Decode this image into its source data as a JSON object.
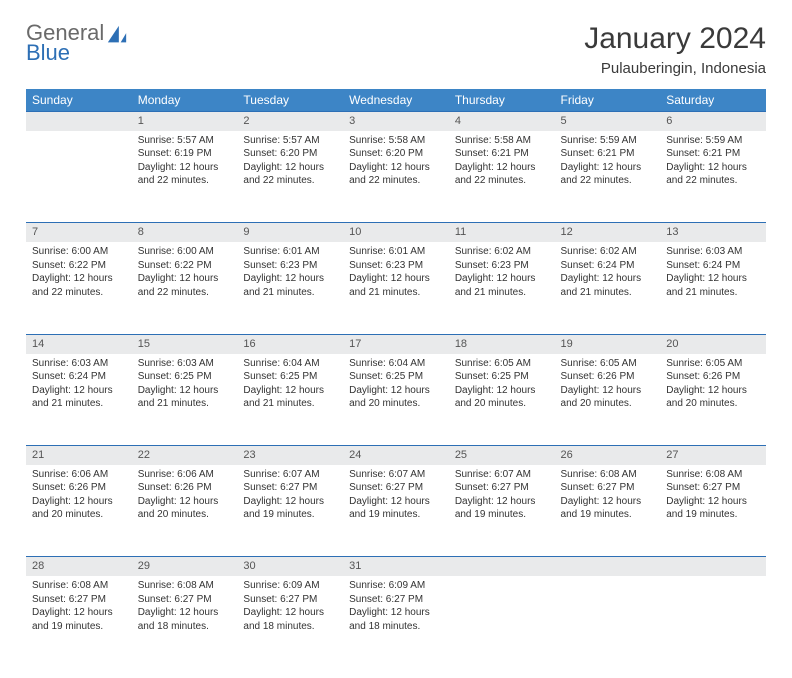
{
  "logo": {
    "general": "General",
    "blue": "Blue"
  },
  "title": "January 2024",
  "location": "Pulauberingin, Indonesia",
  "colors": {
    "header_bg": "#3d85c6",
    "header_text": "#ffffff",
    "daynum_bg": "#e9eaeb",
    "divider": "#2d6fb5",
    "logo_gray": "#6a6a6a",
    "logo_blue": "#2d6fb5"
  },
  "weekdays": [
    "Sunday",
    "Monday",
    "Tuesday",
    "Wednesday",
    "Thursday",
    "Friday",
    "Saturday"
  ],
  "weeks": [
    {
      "nums": [
        "",
        "1",
        "2",
        "3",
        "4",
        "5",
        "6"
      ],
      "cells": [
        null,
        {
          "sunrise": "Sunrise: 5:57 AM",
          "sunset": "Sunset: 6:19 PM",
          "daylight": "Daylight: 12 hours and 22 minutes."
        },
        {
          "sunrise": "Sunrise: 5:57 AM",
          "sunset": "Sunset: 6:20 PM",
          "daylight": "Daylight: 12 hours and 22 minutes."
        },
        {
          "sunrise": "Sunrise: 5:58 AM",
          "sunset": "Sunset: 6:20 PM",
          "daylight": "Daylight: 12 hours and 22 minutes."
        },
        {
          "sunrise": "Sunrise: 5:58 AM",
          "sunset": "Sunset: 6:21 PM",
          "daylight": "Daylight: 12 hours and 22 minutes."
        },
        {
          "sunrise": "Sunrise: 5:59 AM",
          "sunset": "Sunset: 6:21 PM",
          "daylight": "Daylight: 12 hours and 22 minutes."
        },
        {
          "sunrise": "Sunrise: 5:59 AM",
          "sunset": "Sunset: 6:21 PM",
          "daylight": "Daylight: 12 hours and 22 minutes."
        }
      ]
    },
    {
      "nums": [
        "7",
        "8",
        "9",
        "10",
        "11",
        "12",
        "13"
      ],
      "cells": [
        {
          "sunrise": "Sunrise: 6:00 AM",
          "sunset": "Sunset: 6:22 PM",
          "daylight": "Daylight: 12 hours and 22 minutes."
        },
        {
          "sunrise": "Sunrise: 6:00 AM",
          "sunset": "Sunset: 6:22 PM",
          "daylight": "Daylight: 12 hours and 22 minutes."
        },
        {
          "sunrise": "Sunrise: 6:01 AM",
          "sunset": "Sunset: 6:23 PM",
          "daylight": "Daylight: 12 hours and 21 minutes."
        },
        {
          "sunrise": "Sunrise: 6:01 AM",
          "sunset": "Sunset: 6:23 PM",
          "daylight": "Daylight: 12 hours and 21 minutes."
        },
        {
          "sunrise": "Sunrise: 6:02 AM",
          "sunset": "Sunset: 6:23 PM",
          "daylight": "Daylight: 12 hours and 21 minutes."
        },
        {
          "sunrise": "Sunrise: 6:02 AM",
          "sunset": "Sunset: 6:24 PM",
          "daylight": "Daylight: 12 hours and 21 minutes."
        },
        {
          "sunrise": "Sunrise: 6:03 AM",
          "sunset": "Sunset: 6:24 PM",
          "daylight": "Daylight: 12 hours and 21 minutes."
        }
      ]
    },
    {
      "nums": [
        "14",
        "15",
        "16",
        "17",
        "18",
        "19",
        "20"
      ],
      "cells": [
        {
          "sunrise": "Sunrise: 6:03 AM",
          "sunset": "Sunset: 6:24 PM",
          "daylight": "Daylight: 12 hours and 21 minutes."
        },
        {
          "sunrise": "Sunrise: 6:03 AM",
          "sunset": "Sunset: 6:25 PM",
          "daylight": "Daylight: 12 hours and 21 minutes."
        },
        {
          "sunrise": "Sunrise: 6:04 AM",
          "sunset": "Sunset: 6:25 PM",
          "daylight": "Daylight: 12 hours and 21 minutes."
        },
        {
          "sunrise": "Sunrise: 6:04 AM",
          "sunset": "Sunset: 6:25 PM",
          "daylight": "Daylight: 12 hours and 20 minutes."
        },
        {
          "sunrise": "Sunrise: 6:05 AM",
          "sunset": "Sunset: 6:25 PM",
          "daylight": "Daylight: 12 hours and 20 minutes."
        },
        {
          "sunrise": "Sunrise: 6:05 AM",
          "sunset": "Sunset: 6:26 PM",
          "daylight": "Daylight: 12 hours and 20 minutes."
        },
        {
          "sunrise": "Sunrise: 6:05 AM",
          "sunset": "Sunset: 6:26 PM",
          "daylight": "Daylight: 12 hours and 20 minutes."
        }
      ]
    },
    {
      "nums": [
        "21",
        "22",
        "23",
        "24",
        "25",
        "26",
        "27"
      ],
      "cells": [
        {
          "sunrise": "Sunrise: 6:06 AM",
          "sunset": "Sunset: 6:26 PM",
          "daylight": "Daylight: 12 hours and 20 minutes."
        },
        {
          "sunrise": "Sunrise: 6:06 AM",
          "sunset": "Sunset: 6:26 PM",
          "daylight": "Daylight: 12 hours and 20 minutes."
        },
        {
          "sunrise": "Sunrise: 6:07 AM",
          "sunset": "Sunset: 6:27 PM",
          "daylight": "Daylight: 12 hours and 19 minutes."
        },
        {
          "sunrise": "Sunrise: 6:07 AM",
          "sunset": "Sunset: 6:27 PM",
          "daylight": "Daylight: 12 hours and 19 minutes."
        },
        {
          "sunrise": "Sunrise: 6:07 AM",
          "sunset": "Sunset: 6:27 PM",
          "daylight": "Daylight: 12 hours and 19 minutes."
        },
        {
          "sunrise": "Sunrise: 6:08 AM",
          "sunset": "Sunset: 6:27 PM",
          "daylight": "Daylight: 12 hours and 19 minutes."
        },
        {
          "sunrise": "Sunrise: 6:08 AM",
          "sunset": "Sunset: 6:27 PM",
          "daylight": "Daylight: 12 hours and 19 minutes."
        }
      ]
    },
    {
      "nums": [
        "28",
        "29",
        "30",
        "31",
        "",
        "",
        ""
      ],
      "cells": [
        {
          "sunrise": "Sunrise: 6:08 AM",
          "sunset": "Sunset: 6:27 PM",
          "daylight": "Daylight: 12 hours and 19 minutes."
        },
        {
          "sunrise": "Sunrise: 6:08 AM",
          "sunset": "Sunset: 6:27 PM",
          "daylight": "Daylight: 12 hours and 18 minutes."
        },
        {
          "sunrise": "Sunrise: 6:09 AM",
          "sunset": "Sunset: 6:27 PM",
          "daylight": "Daylight: 12 hours and 18 minutes."
        },
        {
          "sunrise": "Sunrise: 6:09 AM",
          "sunset": "Sunset: 6:27 PM",
          "daylight": "Daylight: 12 hours and 18 minutes."
        },
        null,
        null,
        null
      ]
    }
  ]
}
